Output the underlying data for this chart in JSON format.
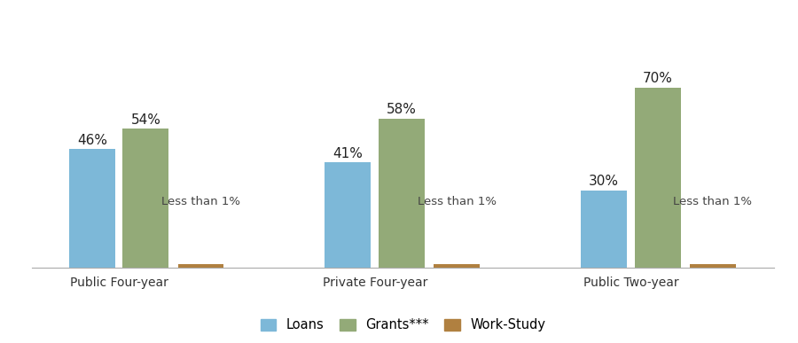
{
  "categories": [
    "Public Four-year",
    "Private Four-year",
    "Public Two-year"
  ],
  "series": {
    "Loans": [
      46,
      41,
      30
    ],
    "Grants***": [
      54,
      58,
      70
    ],
    "Work-Study": [
      1.5,
      1.5,
      1.5
    ]
  },
  "labels": {
    "Loans": [
      "46%",
      "41%",
      "30%"
    ],
    "Grants***": [
      "54%",
      "58%",
      "70%"
    ],
    "Work-Study": [
      "Less than 1%",
      "Less than 1%",
      "Less than 1%"
    ]
  },
  "colors": {
    "Loans": "#7db8d8",
    "Grants***": "#93aa78",
    "Work-Study": "#b08040"
  },
  "ylim": [
    0,
    100
  ],
  "bar_width": 0.18,
  "background_color": "#ffffff",
  "legend_labels": [
    "Loans",
    "Grants***",
    "Work-Study"
  ],
  "label_fontsize": 11,
  "tick_fontsize": 10,
  "workstudy_label_fontsize": 9.5
}
